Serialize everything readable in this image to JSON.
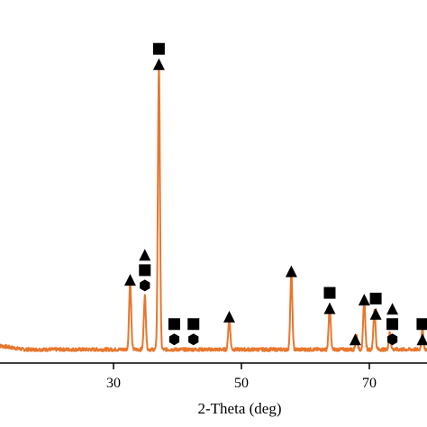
{
  "chart_data": {
    "type": "line",
    "title": "",
    "xlabel": "2-Theta (deg)",
    "ylabel": "",
    "xlim": [
      12,
      79
    ],
    "ylim": [
      0,
      100
    ],
    "x_ticks": [
      {
        "value": 30,
        "label": "30"
      },
      {
        "value": 50,
        "label": "50"
      },
      {
        "value": 70,
        "label": "70"
      }
    ],
    "line_color": "#e8772e",
    "marker_color": "#000000",
    "baseline": 3.5,
    "peaks": [
      {
        "x": 32.6,
        "y": 24
      },
      {
        "x": 34.9,
        "y": 19
      },
      {
        "x": 37.1,
        "y": 100
      },
      {
        "x": 48.1,
        "y": 11
      },
      {
        "x": 57.8,
        "y": 27
      },
      {
        "x": 63.8,
        "y": 15
      },
      {
        "x": 68.0,
        "y": 5
      },
      {
        "x": 69.2,
        "y": 17
      },
      {
        "x": 70.8,
        "y": 14
      },
      {
        "x": 73.2,
        "y": 6
      },
      {
        "x": 78.3,
        "y": 7
      }
    ],
    "phase_markers": [
      {
        "x": 32.6,
        "stack": [
          "triangle"
        ],
        "y_above": 26
      },
      {
        "x": 34.9,
        "stack": [
          "hexagon",
          "square",
          "triangle"
        ],
        "y_above": 24
      },
      {
        "x": 37.1,
        "stack": [
          "triangle",
          "square"
        ],
        "y_above": 102
      },
      {
        "x": 39.5,
        "stack": [
          "hexagon",
          "square"
        ],
        "y_above": 5
      },
      {
        "x": 42.5,
        "stack": [
          "hexagon",
          "square"
        ],
        "y_above": 5
      },
      {
        "x": 48.1,
        "stack": [
          "triangle"
        ],
        "y_above": 13
      },
      {
        "x": 57.8,
        "stack": [
          "triangle"
        ],
        "y_above": 29
      },
      {
        "x": 63.8,
        "stack": [
          "triangle",
          "square"
        ],
        "y_above": 16
      },
      {
        "x": 67.8,
        "stack": [
          "triangle"
        ],
        "y_above": 5
      },
      {
        "x": 69.2,
        "stack": [
          "triangle"
        ],
        "y_above": 19
      },
      {
        "x": 71.0,
        "stack": [
          "triangle",
          "square"
        ],
        "y_above": 14
      },
      {
        "x": 73.6,
        "stack": [
          "hexagon",
          "square",
          "triangle"
        ],
        "y_above": 5
      },
      {
        "x": 78.3,
        "stack": [
          "triangle",
          "square"
        ],
        "y_above": 5
      }
    ]
  }
}
